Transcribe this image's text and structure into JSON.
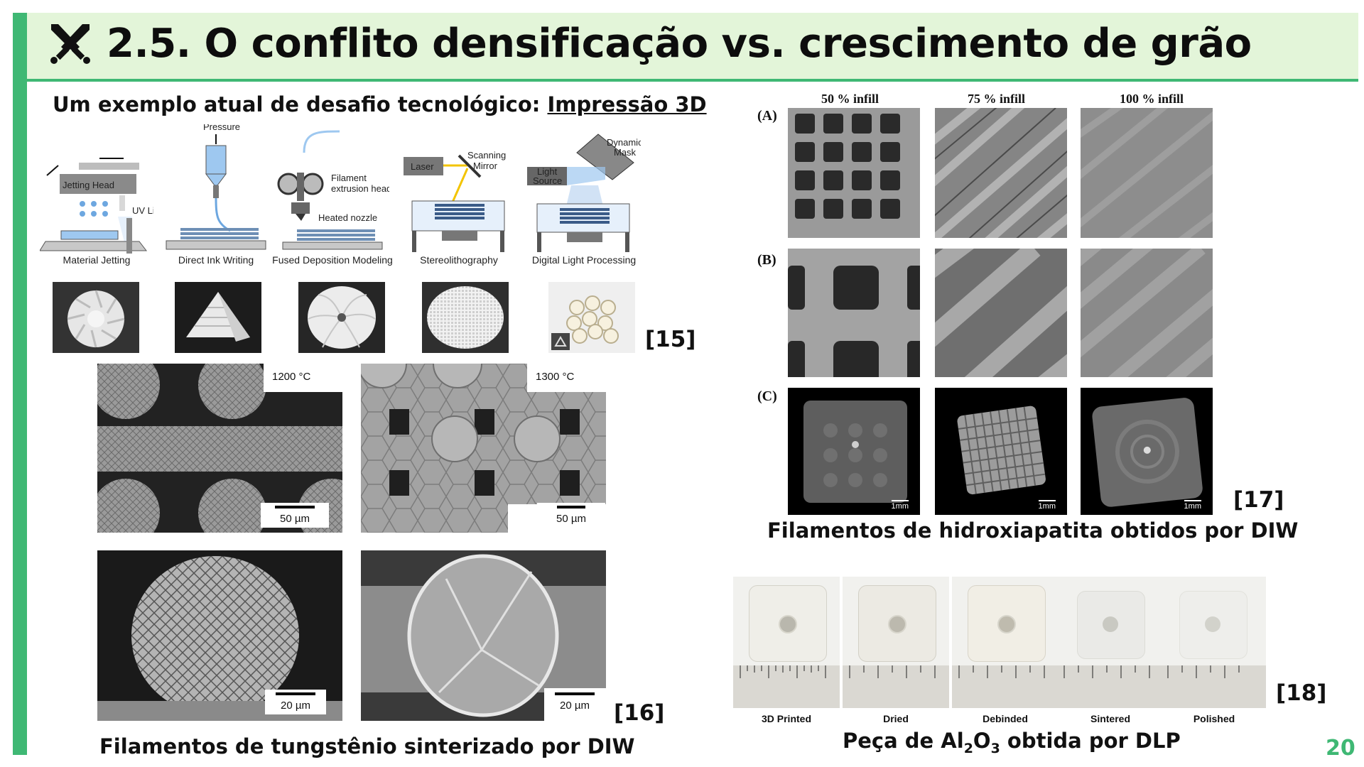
{
  "header": {
    "title": "2.5. O conflito densificação vs. crescimento de grão",
    "icon": "crossed-swords-icon"
  },
  "subtitle": {
    "prefix": "Um exemplo atual de desafio tecnológico: ",
    "link": "Impressão 3D"
  },
  "processes": [
    {
      "label": "Material Jetting",
      "parts": [
        "Jetting Head",
        "UV Light"
      ]
    },
    {
      "label": "Direct Ink Writing",
      "parts": [
        "Pressure"
      ]
    },
    {
      "label": "Fused Deposition Modeling",
      "parts": [
        "Filament extrusion head",
        "Heated nozzle"
      ]
    },
    {
      "label": "Stereolithography",
      "parts": [
        "Laser",
        "Scanning Mirror"
      ]
    },
    {
      "label": "Digital Light Processing",
      "parts": [
        "Light Source",
        "Dynamic Mask"
      ]
    }
  ],
  "process_text": {
    "jetting_head": "Jetting Head",
    "uv_light": "UV Light",
    "pressure": "Pressure",
    "filament_1": "Filament",
    "filament_2": "extrusion head",
    "heated_nozzle": "Heated nozzle",
    "laser": "Laser",
    "scanning_1": "Scanning",
    "scanning_2": "Mirror",
    "light_1": "Light",
    "light_2": "Source",
    "dynamic_1": "Dynamic",
    "dynamic_2": "Mask"
  },
  "refs": {
    "r15": "[15]",
    "r16": "[16]",
    "r17": "[17]",
    "r18": "[18]"
  },
  "tungsten": {
    "temp_left": "1200 °C",
    "temp_right": "1300 °C",
    "scale_top": "50 µm",
    "scale_bottom": "20 µm",
    "caption": "Filamentos de tungstênio sinterizado por DIW"
  },
  "hydroxyapatite": {
    "columns": [
      "50 % infill",
      "75 % infill",
      "100 % infill"
    ],
    "rows": [
      "(A)",
      "(B)",
      "(C)"
    ],
    "scale": "1mm",
    "caption": "Filamentos de hidroxiapatita obtidos por DIW"
  },
  "alumina": {
    "stages": [
      "3D Printed",
      "Dried",
      "Debinded",
      "Sintered",
      "Polished"
    ],
    "caption_pre": "Peça de Al",
    "caption_sub1": "2",
    "caption_mid": "O",
    "caption_sub2": "3",
    "caption_post": " obtida por DLP"
  },
  "page_number": "20",
  "colors": {
    "accent": "#3fb874",
    "title_band": "#e3f5d9"
  }
}
